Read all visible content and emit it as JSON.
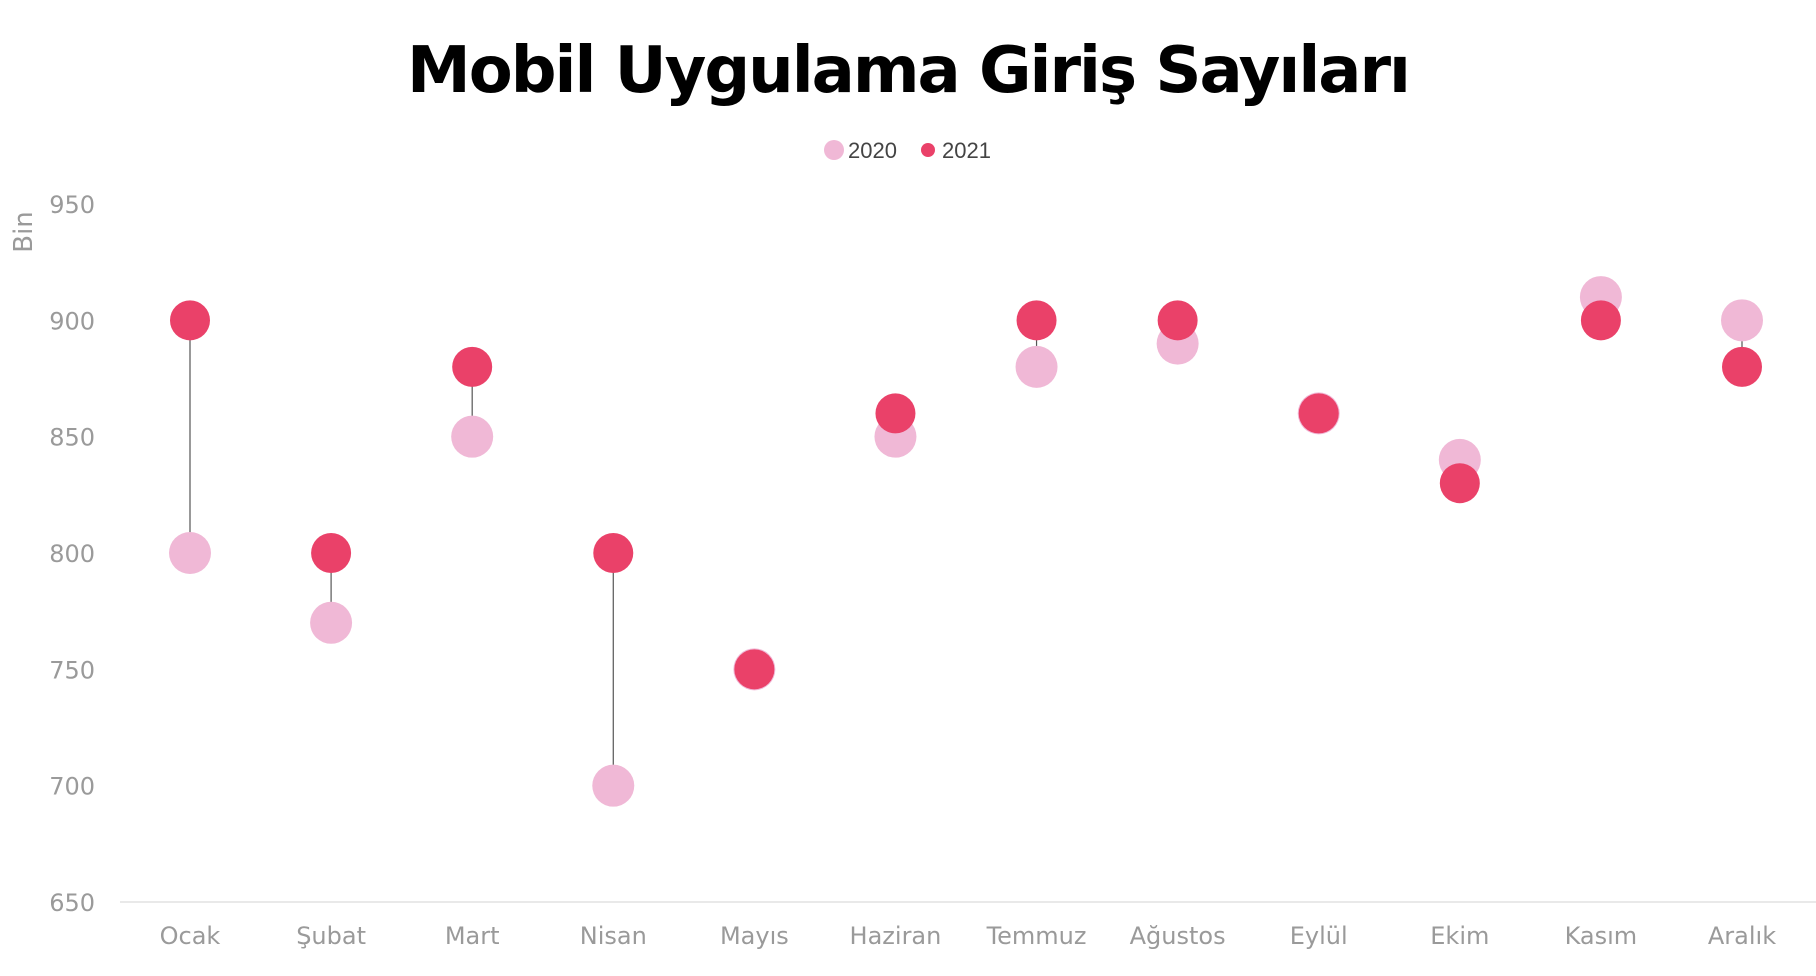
{
  "chart_data": {
    "type": "scatter",
    "title": "Mobil Uygulama Giriş Sayıları",
    "ylabel": "Bin",
    "xlabel": "",
    "categories": [
      "Ocak",
      "Şubat",
      "Mart",
      "Nisan",
      "Mayıs",
      "Haziran",
      "Temmuz",
      "Ağustos",
      "Eylül",
      "Ekim",
      "Kasım",
      "Aralık"
    ],
    "series": [
      {
        "name": "2020",
        "color": "#f0b8d6",
        "values": [
          800,
          770,
          850,
          700,
          750,
          850,
          880,
          890,
          860,
          840,
          910,
          900
        ]
      },
      {
        "name": "2021",
        "color": "#ea4169",
        "values": [
          900,
          800,
          880,
          800,
          750,
          860,
          900,
          900,
          860,
          830,
          900,
          880
        ]
      }
    ],
    "ylim": [
      650,
      950
    ],
    "yticks": [
      650,
      700,
      750,
      800,
      850,
      900,
      950
    ],
    "grid": false,
    "legend_position": "top",
    "connector_color": "#555555"
  }
}
